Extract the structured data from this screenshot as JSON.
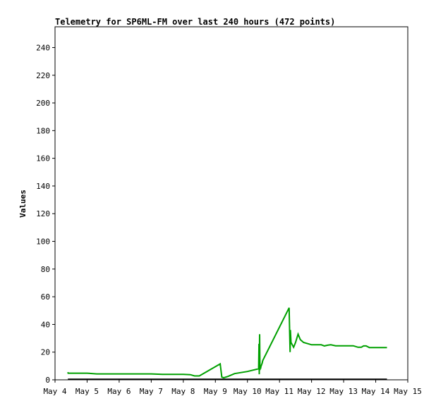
{
  "chart_data": {
    "type": "line",
    "title": "Telemetry for SP6ML-FM over last 240 hours (472 points)",
    "xlabel": "",
    "ylabel": "Values",
    "xlim": [
      4.0,
      15.0
    ],
    "ylim": [
      0,
      255
    ],
    "x_ticks": [
      {
        "value": 4,
        "label": "May 4"
      },
      {
        "value": 5,
        "label": "May 5"
      },
      {
        "value": 6,
        "label": "May 6"
      },
      {
        "value": 7,
        "label": "May 7"
      },
      {
        "value": 8,
        "label": "May 8"
      },
      {
        "value": 9,
        "label": "May 9"
      },
      {
        "value": 10,
        "label": "May 10"
      },
      {
        "value": 11,
        "label": "May 11"
      },
      {
        "value": 12,
        "label": "May 12"
      },
      {
        "value": 13,
        "label": "May 13"
      },
      {
        "value": 14,
        "label": "May 14"
      },
      {
        "value": 15,
        "label": "May 15"
      }
    ],
    "y_ticks": [
      0,
      20,
      40,
      60,
      80,
      100,
      120,
      140,
      160,
      180,
      200,
      220,
      240
    ],
    "grid": false,
    "legend": "none",
    "series": [
      {
        "color": "#00a000",
        "x": [
          4.4,
          4.41,
          5.0,
          5.3,
          6.0,
          7.0,
          7.35,
          8.0,
          8.22,
          8.35,
          8.5,
          8.7,
          9.15,
          9.2,
          9.26,
          9.4,
          9.6,
          10.0,
          10.35,
          10.36,
          10.37,
          10.38,
          10.39,
          10.4,
          10.41,
          10.42,
          10.46,
          10.48,
          11.3,
          11.33,
          11.34,
          11.36,
          11.38,
          11.44,
          11.5,
          11.58,
          11.65,
          11.75,
          11.9,
          12.0,
          12.15,
          12.3,
          12.4,
          12.5,
          12.6,
          12.75,
          13.0,
          13.3,
          13.45,
          13.55,
          13.62,
          13.7,
          13.8,
          14.0,
          14.15,
          14.35
        ],
        "y": [
          5.5,
          4.8,
          4.8,
          4.3,
          4.3,
          4.3,
          3.9,
          3.9,
          3.7,
          2.8,
          2.8,
          5.5,
          11.5,
          2.0,
          1.5,
          2.5,
          4.5,
          6.0,
          8.0,
          26.0,
          4.0,
          33.0,
          7.0,
          9.5,
          8.0,
          9.5,
          12.0,
          14.0,
          52.0,
          20.0,
          36.0,
          27.0,
          26.0,
          23.5,
          27.0,
          33.0,
          29.0,
          27.0,
          26.0,
          25.3,
          25.3,
          25.3,
          24.5,
          25.0,
          25.3,
          24.6,
          24.6,
          24.6,
          23.5,
          23.5,
          24.5,
          24.5,
          23.3,
          23.3,
          23.3,
          23.3
        ]
      },
      {
        "color": "#000000",
        "x": [
          4.4,
          14.35
        ],
        "y": [
          0.4,
          0.4
        ]
      }
    ]
  }
}
